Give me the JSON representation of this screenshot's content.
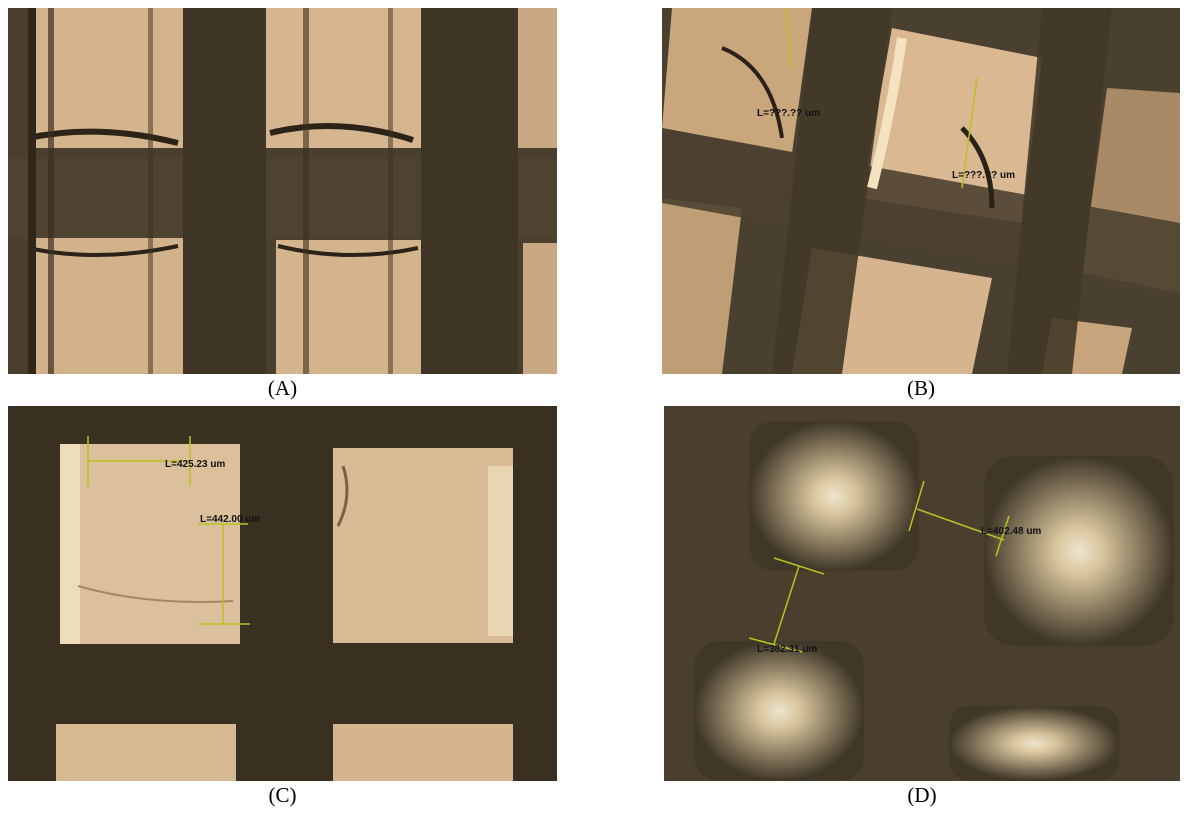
{
  "figure": {
    "panels": [
      {
        "id": "A",
        "caption": "(A)",
        "measurements": []
      },
      {
        "id": "B",
        "caption": "(B)",
        "measurements": [
          "L=???.?? um",
          "L=???.?? um"
        ]
      },
      {
        "id": "C",
        "caption": "(C)",
        "measurements": [
          "L=425.23 um",
          "L=442.00 um"
        ]
      },
      {
        "id": "D",
        "caption": "(D)",
        "measurements": [
          "L=402.48 um",
          "L=382.31 um"
        ]
      }
    ],
    "colors": {
      "mesh_dark": "#4a3f2e",
      "cell_light": "#d9b892",
      "cell_bright": "#f3e4c4",
      "measure_line": "#b7c220"
    }
  }
}
